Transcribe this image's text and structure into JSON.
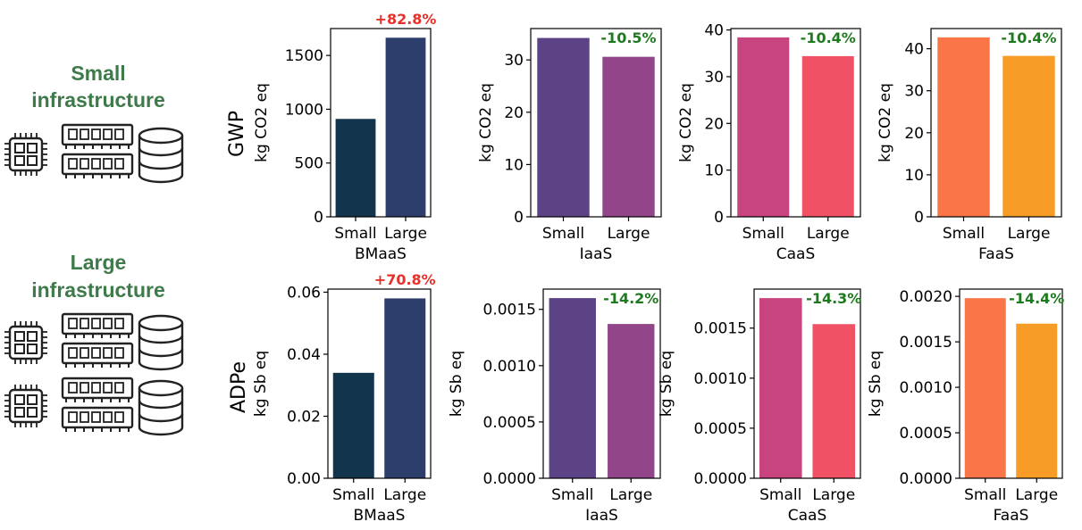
{
  "infra_labels": {
    "small": [
      "Small",
      "infrastructure"
    ],
    "large": [
      "Large",
      "infrastructure"
    ]
  },
  "row_labels": [
    "GWP",
    "ADPe"
  ],
  "icon_names": [
    "cpu-icon",
    "memory-icon",
    "database-icon"
  ],
  "chart_data": [
    {
      "type": "bar",
      "row": "GWP",
      "categories": [
        "Small",
        "Large"
      ],
      "values": [
        910,
        1665
      ],
      "colors": [
        "#12344d",
        "#2d3e6c"
      ],
      "xlabel": "BMaaS",
      "ylabel": "kg CO2 eq",
      "ylim": [
        0,
        1750
      ],
      "yticks": [
        0,
        500,
        1000,
        1500
      ],
      "annotation": {
        "text": "+82.8%",
        "color": "#e8302a"
      }
    },
    {
      "type": "bar",
      "row": "GWP",
      "categories": [
        "Small",
        "Large"
      ],
      "values": [
        34.2,
        30.6
      ],
      "colors": [
        "#5b4386",
        "#924589"
      ],
      "xlabel": "IaaS",
      "ylabel": "kg CO2 eq",
      "ylim": [
        0,
        36
      ],
      "yticks": [
        0,
        10,
        20,
        30
      ],
      "annotation": {
        "text": "-10.5%",
        "color": "#1e7a1e"
      }
    },
    {
      "type": "bar",
      "row": "GWP",
      "categories": [
        "Small",
        "Large"
      ],
      "values": [
        38.4,
        34.4
      ],
      "colors": [
        "#c8447f",
        "#f05165"
      ],
      "xlabel": "CaaS",
      "ylabel": "kg CO2 eq",
      "ylim": [
        0,
        40.3
      ],
      "yticks": [
        0,
        10,
        20,
        30,
        40
      ],
      "annotation": {
        "text": "-10.4%",
        "color": "#1e7a1e"
      }
    },
    {
      "type": "bar",
      "row": "GWP",
      "categories": [
        "Small",
        "Large"
      ],
      "values": [
        42.7,
        38.3
      ],
      "colors": [
        "#fa7548",
        "#f89c28"
      ],
      "xlabel": "FaaS",
      "ylabel": "kg CO2 eq",
      "ylim": [
        0,
        44.8
      ],
      "yticks": [
        0,
        10,
        20,
        30,
        40
      ],
      "annotation": {
        "text": "-10.4%",
        "color": "#1e7a1e"
      }
    },
    {
      "type": "bar",
      "row": "ADPe",
      "categories": [
        "Small",
        "Large"
      ],
      "values": [
        0.034,
        0.058
      ],
      "colors": [
        "#12344d",
        "#2d3e6c"
      ],
      "xlabel": "BMaaS",
      "ylabel": "kg Sb eq",
      "ylim": [
        0,
        0.061
      ],
      "yticks": [
        0.0,
        0.02,
        0.04,
        0.06
      ],
      "tick_decimals": 2,
      "annotation": {
        "text": "+70.8%",
        "color": "#e8302a"
      }
    },
    {
      "type": "bar",
      "row": "ADPe",
      "categories": [
        "Small",
        "Large"
      ],
      "values": [
        0.0016,
        0.00137
      ],
      "colors": [
        "#5b4386",
        "#924589"
      ],
      "xlabel": "IaaS",
      "ylabel": "kg Sb eq",
      "ylim": [
        0,
        0.00168
      ],
      "yticks": [
        0.0,
        0.0005,
        0.001,
        0.0015
      ],
      "tick_decimals": 4,
      "annotation": {
        "text": "-14.2%",
        "color": "#1e7a1e"
      }
    },
    {
      "type": "bar",
      "row": "ADPe",
      "categories": [
        "Small",
        "Large"
      ],
      "values": [
        0.0018,
        0.00154
      ],
      "colors": [
        "#c8447f",
        "#f05165"
      ],
      "xlabel": "CaaS",
      "ylabel": "kg Sb eq",
      "ylim": [
        0,
        0.00189
      ],
      "yticks": [
        0.0,
        0.0005,
        0.001,
        0.0015
      ],
      "tick_decimals": 4,
      "annotation": {
        "text": "-14.3%",
        "color": "#1e7a1e"
      }
    },
    {
      "type": "bar",
      "row": "ADPe",
      "categories": [
        "Small",
        "Large"
      ],
      "values": [
        0.00198,
        0.0017
      ],
      "colors": [
        "#fa7548",
        "#f89c28"
      ],
      "xlabel": "FaaS",
      "ylabel": "kg Sb eq",
      "ylim": [
        0,
        0.00208
      ],
      "yticks": [
        0.0,
        0.0005,
        0.001,
        0.0015,
        0.002
      ],
      "tick_decimals": 4,
      "annotation": {
        "text": "-14.4%",
        "color": "#1e7a1e"
      }
    }
  ]
}
